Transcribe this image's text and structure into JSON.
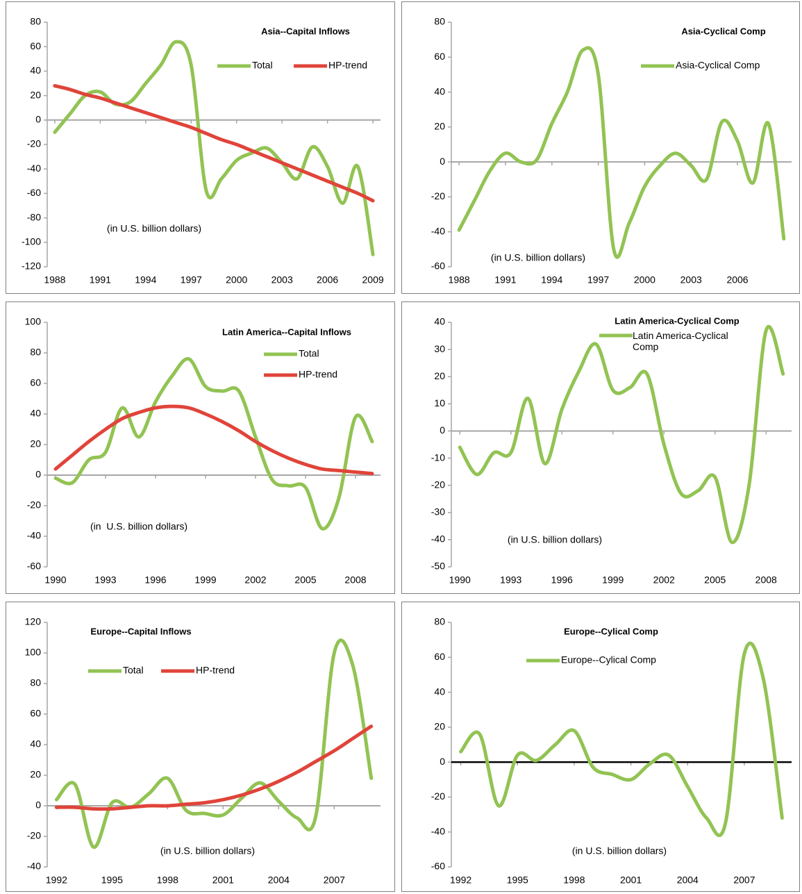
{
  "chart_data": [
    {
      "type": "line",
      "title": "Asia--Capital Inflows",
      "note": "(in U.S. billion dollars)",
      "x": [
        1988,
        1989,
        1990,
        1991,
        1992,
        1993,
        1994,
        1995,
        1996,
        1997,
        1998,
        1999,
        2000,
        2001,
        2002,
        2003,
        2004,
        2005,
        2006,
        2007,
        2008,
        2009
      ],
      "xlim": [
        1987.5,
        2009.5
      ],
      "xticks": [
        1988,
        1991,
        1994,
        1997,
        2000,
        2003,
        2006,
        2009
      ],
      "ylim": [
        -120,
        80
      ],
      "yticks": [
        -120,
        -100,
        -80,
        -60,
        -40,
        -20,
        0,
        20,
        40,
        60,
        80
      ],
      "axis_color": "#a6a6a6",
      "series": [
        {
          "name": "Total",
          "color": "#92c353",
          "values": [
            -10,
            5,
            20,
            23,
            13,
            15,
            30,
            45,
            64,
            45,
            -58,
            -48,
            -33,
            -27,
            -23,
            -35,
            -48,
            -22,
            -38,
            -68,
            -38,
            -110
          ]
        },
        {
          "name": "HP-trend",
          "color": "#e0443a",
          "values": [
            28,
            25,
            21,
            18,
            14,
            10,
            6,
            2,
            -2,
            -6,
            -11,
            -16,
            -20,
            -25,
            -30,
            -35,
            -40,
            -45,
            -50,
            -55,
            -60,
            -66
          ]
        }
      ]
    },
    {
      "type": "line",
      "title": "Asia-Cyclical Comp",
      "note": "(in U.S. billion dollars)",
      "x": [
        1988,
        1989,
        1990,
        1991,
        1992,
        1993,
        1994,
        1995,
        1996,
        1997,
        1998,
        1999,
        2000,
        2001,
        2002,
        2003,
        2004,
        2005,
        2006,
        2007,
        2008,
        2009
      ],
      "xlim": [
        1987.5,
        2009.5
      ],
      "xticks": [
        1988,
        1991,
        1994,
        1997,
        2000,
        2003,
        2006
      ],
      "ylim": [
        -60,
        80
      ],
      "yticks": [
        -60,
        -40,
        -20,
        0,
        20,
        40,
        60,
        80
      ],
      "axis_color": "#a6a6a6",
      "series": [
        {
          "name": "Asia-Cyclical Comp",
          "color": "#92c353",
          "values": [
            -39,
            -22,
            -5,
            5,
            0,
            1,
            22,
            40,
            64,
            50,
            -50,
            -35,
            -14,
            -2,
            5,
            -2,
            -10,
            23,
            12,
            -12,
            22,
            -44
          ]
        }
      ]
    },
    {
      "type": "line",
      "title": "Latin America--Capital Inflows",
      "note": "(in  U.S. billion dollars)",
      "x": [
        1990,
        1991,
        1992,
        1993,
        1994,
        1995,
        1996,
        1997,
        1998,
        1999,
        2000,
        2001,
        2002,
        2003,
        2004,
        2005,
        2006,
        2007,
        2008,
        2009
      ],
      "xlim": [
        1989.5,
        2009.5
      ],
      "xticks": [
        1990,
        1993,
        1996,
        1999,
        2002,
        2005,
        2008
      ],
      "ylim": [
        -60,
        100
      ],
      "yticks": [
        -60,
        -40,
        -20,
        0,
        20,
        40,
        60,
        80,
        100
      ],
      "axis_color": "#a6a6a6",
      "series": [
        {
          "name": "Total",
          "color": "#92c353",
          "values": [
            -2,
            -5,
            10,
            15,
            44,
            25,
            48,
            65,
            76,
            58,
            55,
            55,
            25,
            -3,
            -7,
            -8,
            -35,
            -15,
            38,
            22
          ]
        },
        {
          "name": "HP-trend",
          "color": "#e0443a",
          "values": [
            4,
            13,
            22,
            30,
            37,
            41,
            44,
            45,
            44,
            40,
            35,
            29,
            22,
            16,
            11,
            7,
            4,
            3,
            2,
            1
          ]
        }
      ]
    },
    {
      "type": "line",
      "title": "Latin America-Cyclical Comp",
      "note": "(in U.S. billion dollars)",
      "x": [
        1990,
        1991,
        1992,
        1993,
        1994,
        1995,
        1996,
        1997,
        1998,
        1999,
        2000,
        2001,
        2002,
        2003,
        2004,
        2005,
        2006,
        2007,
        2008,
        2009
      ],
      "xlim": [
        1989.5,
        2009.5
      ],
      "xticks": [
        1990,
        1993,
        1996,
        1999,
        2002,
        2005,
        2008
      ],
      "ylim": [
        -50,
        40
      ],
      "yticks": [
        -50,
        -40,
        -30,
        -20,
        -10,
        0,
        10,
        20,
        30,
        40
      ],
      "axis_color": "#a6a6a6",
      "series": [
        {
          "name": "Latin America-Cyclical Comp",
          "color": "#92c353",
          "values": [
            -6,
            -16,
            -8,
            -8,
            12,
            -12,
            8,
            22,
            32,
            15,
            16,
            21,
            -5,
            -23,
            -22,
            -17,
            -41,
            -20,
            37,
            21
          ]
        }
      ]
    },
    {
      "type": "line",
      "title": "Europe--Capital Inflows",
      "note": "(in U.S. billion dollars)",
      "x": [
        1992,
        1993,
        1994,
        1995,
        1996,
        1997,
        1998,
        1999,
        2000,
        2001,
        2002,
        2003,
        2004,
        2005,
        2006,
        2007,
        2008,
        2009
      ],
      "xlim": [
        1991.5,
        2009.5
      ],
      "xticks": [
        1992,
        1995,
        1998,
        2001,
        2004,
        2007
      ],
      "ylim": [
        -40,
        120
      ],
      "yticks": [
        -40,
        -20,
        0,
        20,
        40,
        60,
        80,
        100,
        120
      ],
      "axis_color": "#a6a6a6",
      "series": [
        {
          "name": "Total",
          "color": "#92c353",
          "values": [
            4,
            14,
            -27,
            2,
            -1,
            8,
            18,
            -3,
            -5,
            -6,
            5,
            15,
            3,
            -8,
            -7,
            100,
            92,
            18
          ]
        },
        {
          "name": "HP-trend",
          "color": "#e0443a",
          "values": [
            -1,
            -1,
            -2,
            -2,
            -1,
            0,
            0,
            1,
            2,
            4,
            7,
            11,
            16,
            22,
            29,
            36,
            44,
            52
          ]
        }
      ]
    },
    {
      "type": "line",
      "title": "Europe--Cylical Comp",
      "note": "(in U.S. billion dollars)",
      "x": [
        1992,
        1993,
        1994,
        1995,
        1996,
        1997,
        1998,
        1999,
        2000,
        2001,
        2002,
        2003,
        2004,
        2005,
        2006,
        2007,
        2008,
        2009
      ],
      "xlim": [
        1991.5,
        2009.5
      ],
      "xticks": [
        1992,
        1995,
        1998,
        2001,
        2004,
        2007
      ],
      "ylim": [
        -60,
        80
      ],
      "yticks": [
        -60,
        -40,
        -20,
        0,
        20,
        40,
        60,
        80
      ],
      "axis_color": "#000000",
      "series": [
        {
          "name": "Europe--Cylical Comp",
          "color": "#92c353",
          "values": [
            6,
            16,
            -25,
            4,
            1,
            10,
            18,
            -3,
            -7,
            -10,
            -1,
            4,
            -14,
            -32,
            -35,
            62,
            48,
            -32
          ]
        }
      ]
    }
  ]
}
